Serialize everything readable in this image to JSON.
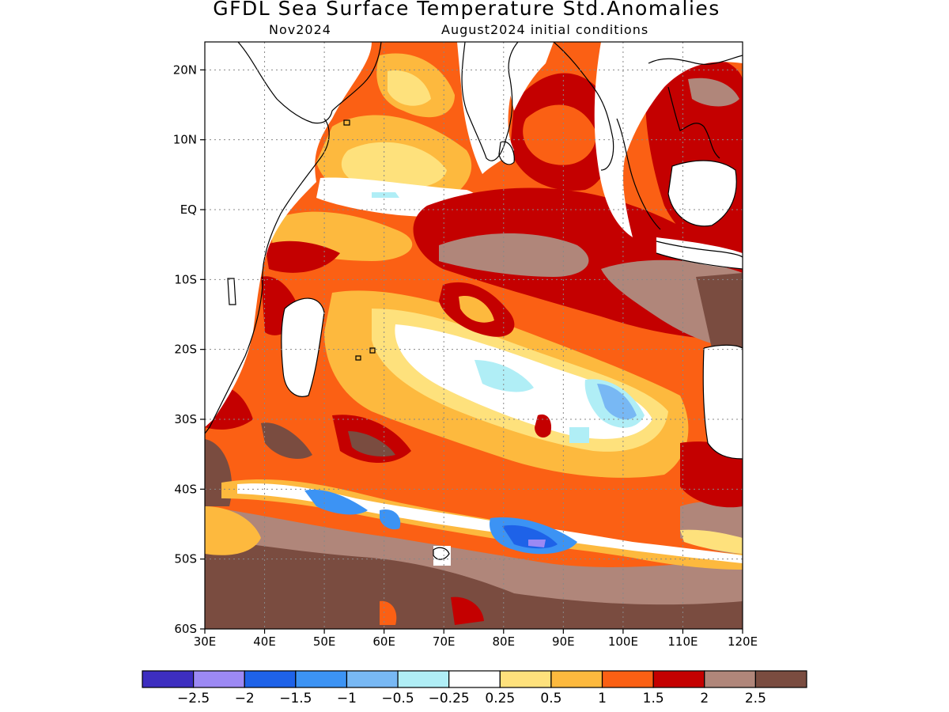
{
  "header": {
    "title": "GFDL Sea Surface Temperature Std.Anomalies",
    "forecast_month": "Nov2024",
    "initial_conditions": "August2024 initial conditions"
  },
  "map": {
    "lon_range": [
      30,
      120
    ],
    "lat_range": [
      -60,
      24
    ],
    "lat_ticks": [
      {
        "value": 20,
        "label": "20N"
      },
      {
        "value": 10,
        "label": "10N"
      },
      {
        "value": 0,
        "label": "EQ"
      },
      {
        "value": -10,
        "label": "10S"
      },
      {
        "value": -20,
        "label": "20S"
      },
      {
        "value": -30,
        "label": "30S"
      },
      {
        "value": -40,
        "label": "40S"
      },
      {
        "value": -50,
        "label": "50S"
      },
      {
        "value": -60,
        "label": "60S"
      }
    ],
    "lon_ticks": [
      {
        "value": 30,
        "label": "30E"
      },
      {
        "value": 40,
        "label": "40E"
      },
      {
        "value": 50,
        "label": "50E"
      },
      {
        "value": 60,
        "label": "60E"
      },
      {
        "value": 70,
        "label": "70E"
      },
      {
        "value": 80,
        "label": "80E"
      },
      {
        "value": 90,
        "label": "90E"
      },
      {
        "value": 100,
        "label": "100E"
      },
      {
        "value": 110,
        "label": "110E"
      },
      {
        "value": 120,
        "label": "120E"
      }
    ],
    "grid": true
  },
  "colorbar": {
    "colors": [
      "#3d2ec0",
      "#9c89f4",
      "#1e62e8",
      "#3c93f4",
      "#78b8f4",
      "#b0eef6",
      "#ffffff",
      "#fee17c",
      "#fdb93e",
      "#fb6014",
      "#c40000",
      "#b0867a",
      "#7a4c40"
    ],
    "labels": [
      "−2.5",
      "−2",
      "−1.5",
      "−1",
      "−0.5",
      "−0.25",
      "0.25",
      "0.5",
      "1",
      "1.5",
      "2",
      "2.5"
    ]
  }
}
